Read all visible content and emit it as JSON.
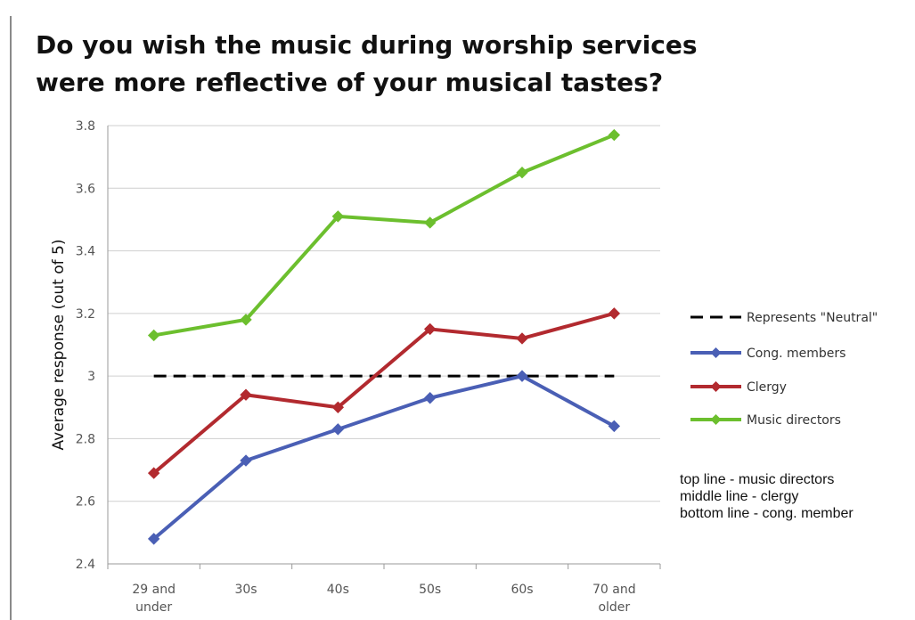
{
  "chart_data": {
    "type": "line",
    "title_lines": [
      "Do you wish the music during worship services",
      "were more reflective of your musical tastes?"
    ],
    "xlabel": "",
    "ylabel": "Average response (out of 5)",
    "categories": [
      [
        "29 and",
        "under"
      ],
      [
        "30s"
      ],
      [
        "40s"
      ],
      [
        "50s"
      ],
      [
        "60s"
      ],
      [
        "70 and",
        "older"
      ]
    ],
    "ylim": [
      2.4,
      3.8
    ],
    "yticks": [
      2.4,
      2.6,
      2.8,
      3,
      3.2,
      3.4,
      3.6,
      3.8
    ],
    "ytick_labels": [
      "2.4",
      "2.6",
      "2.8",
      "3",
      "3.2",
      "3.4",
      "3.6",
      "3.8"
    ],
    "grid": true,
    "legend_position": "right",
    "reference_line": {
      "name": "Represents \"Neutral\"",
      "value": 3,
      "color": "#000000",
      "style": "dashed"
    },
    "series": [
      {
        "name": "Cong. members",
        "color": "#4a5fb5",
        "values": [
          2.48,
          2.73,
          2.83,
          2.93,
          3.0,
          2.84
        ]
      },
      {
        "name": "Clergy",
        "color": "#b22a2f",
        "values": [
          2.69,
          2.94,
          2.9,
          3.15,
          3.12,
          3.2
        ]
      },
      {
        "name": "Music directors",
        "color": "#6cbf2e",
        "values": [
          3.13,
          3.18,
          3.51,
          3.49,
          3.65,
          3.77
        ]
      }
    ]
  },
  "note": {
    "lines": [
      "top line - music directors",
      "middle line - clergy",
      "bottom line - cong. member"
    ]
  }
}
